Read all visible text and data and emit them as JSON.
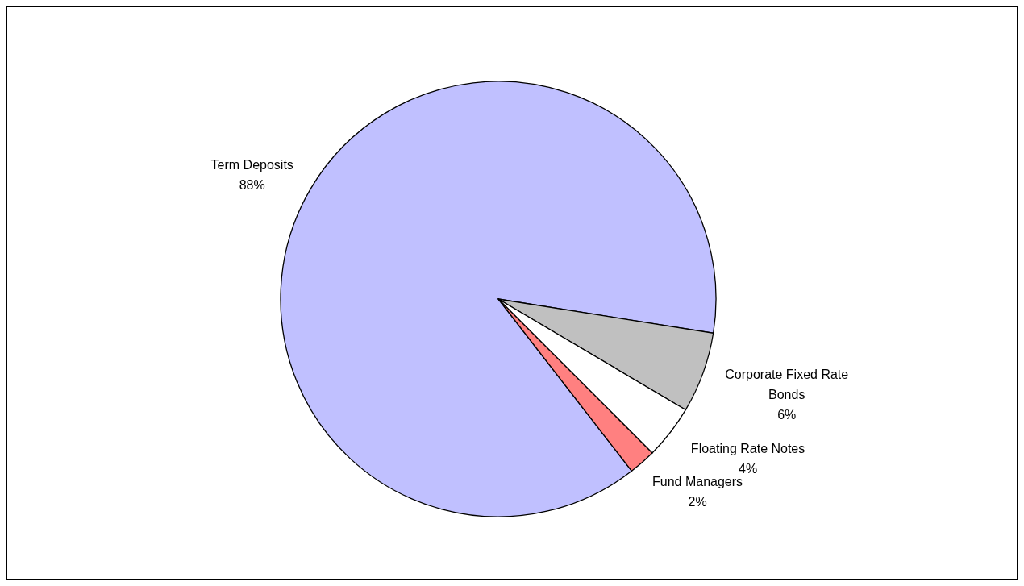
{
  "chart_data": {
    "type": "pie",
    "categories": [
      "Term Deposits",
      "Corporate Fixed Rate Bonds",
      "Floating Rate Notes",
      "Fund Managers"
    ],
    "values": [
      88,
      6,
      4,
      2
    ],
    "colors": [
      "#c0c0ff",
      "#c0c0c0",
      "#ffffff",
      "#ff8080"
    ],
    "value_labels": [
      "88%",
      "6%",
      "4%",
      "2%"
    ],
    "legend": false
  }
}
